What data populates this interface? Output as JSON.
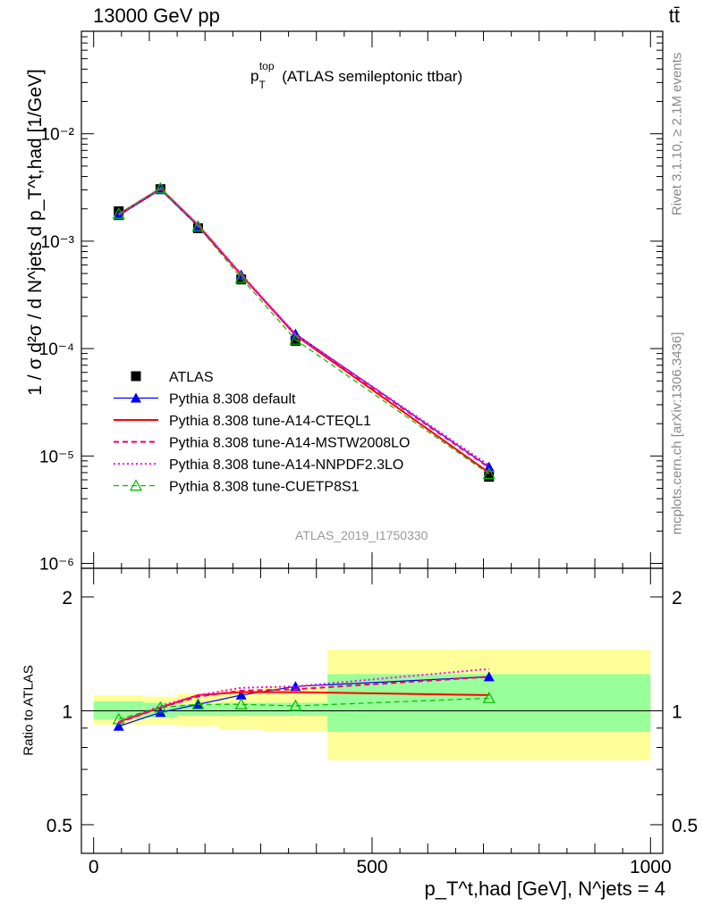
{
  "header": {
    "left": "13000 GeV pp",
    "right": "tt̄"
  },
  "side_text": {
    "rivet": "Rivet 3.1.10, ≥ 2.1M events",
    "mcplots": "mcplots.cern.ch [arXiv:1306.3436]"
  },
  "analysis_id": "ATLAS_2019_I1750330",
  "colors": {
    "data": "#000000",
    "default": "#0000ff",
    "cteql1": "#ff0000",
    "mstw": "#ee0066",
    "nnpdf": "#ff00ff",
    "cuetp8s1": "#00bb00",
    "band_inner": "#99ff99",
    "band_outer": "#ffff99"
  },
  "chart_data": [
    {
      "type": "line",
      "title": "p_T^top (ATLAS semileptonic ttbar)",
      "title_main": "p",
      "title_sub": "T",
      "title_sup": "top",
      "title_rest": "(ATLAS semileptonic ttbar)",
      "ylabel": "1 / σ d²σ / d N^jets d p_T^t,had [1/GeV]",
      "yscale": "log",
      "ylim": [
        9e-07,
        0.09
      ],
      "xlim": [
        -22,
        1022
      ],
      "y_ticks": [
        "10⁻⁶",
        "10⁻⁵",
        "10⁻⁴",
        "10⁻³",
        "10⁻²"
      ],
      "x": [
        45,
        120,
        187.5,
        265,
        362.5,
        710
      ],
      "series": [
        {
          "name": "ATLAS",
          "key": "data",
          "values": [
            0.0019,
            0.00305,
            0.00132,
            0.00044,
            0.000118,
            6.4e-06
          ]
        },
        {
          "name": "Pythia 8.308 default",
          "key": "default",
          "values": [
            0.00173,
            0.00302,
            0.00137,
            0.000485,
            0.000137,
            7.9e-06
          ]
        },
        {
          "name": "Pythia 8.308 tune-A14-CTEQL1",
          "key": "cteql1",
          "values": [
            0.00178,
            0.0031,
            0.00141,
            0.000485,
            0.000133,
            7e-06
          ]
        },
        {
          "name": "Pythia 8.308 tune-A14-MSTW2008LO",
          "key": "mstw",
          "values": [
            0.00176,
            0.00309,
            0.00141,
            0.000488,
            0.000134,
            7.8e-06
          ]
        },
        {
          "name": "Pythia 8.308 tune-A14-NNPDF2.3LO",
          "key": "nnpdf",
          "values": [
            0.00177,
            0.0031,
            0.00143,
            0.000495,
            0.000135,
            8.2e-06
          ]
        },
        {
          "name": "Pythia 8.308 tune-CUETP8S1",
          "key": "cuetp8s1",
          "values": [
            0.0018,
            0.0031,
            0.00137,
            0.000455,
            0.000121,
            6.8e-06
          ]
        }
      ]
    },
    {
      "type": "line",
      "ylabel": "Ratio to ATLAS",
      "yscale": "log",
      "ylim": [
        0.42,
        2.38
      ],
      "xlim": [
        -22,
        1022
      ],
      "y_ticks": [
        {
          "v": 0.5,
          "label": "0.5"
        },
        {
          "v": 1,
          "label": "1"
        },
        {
          "v": 2,
          "label": "2"
        }
      ],
      "x_ticks": [
        {
          "v": 0,
          "label": "0"
        },
        {
          "v": 500,
          "label": "500"
        },
        {
          "v": 1000,
          "label": "1000"
        }
      ],
      "xlabel": "p_T^t,had [GeV], N^jets = 4",
      "bins": [
        [
          0,
          90
        ],
        [
          90,
          150
        ],
        [
          150,
          225
        ],
        [
          225,
          305
        ],
        [
          305,
          420
        ],
        [
          420,
          1000
        ]
      ],
      "band_inner": [
        [
          0.95,
          1.06
        ],
        [
          0.96,
          1.05
        ],
        [
          0.97,
          1.04
        ],
        [
          0.97,
          1.05
        ],
        [
          0.97,
          1.05
        ],
        [
          0.88,
          1.25
        ]
      ],
      "band_outer": [
        [
          0.92,
          1.1
        ],
        [
          0.92,
          1.09
        ],
        [
          0.91,
          1.11
        ],
        [
          0.89,
          1.14
        ],
        [
          0.88,
          1.16
        ],
        [
          0.74,
          1.45
        ]
      ],
      "x": [
        45,
        120,
        187.5,
        265,
        362.5,
        710
      ],
      "series": [
        {
          "name": "Pythia 8.308 default",
          "key": "default",
          "values": [
            0.91,
            0.99,
            1.04,
            1.1,
            1.16,
            1.23
          ]
        },
        {
          "name": "Pythia 8.308 tune-A14-CTEQL1",
          "key": "cteql1",
          "values": [
            0.935,
            1.02,
            1.1,
            1.12,
            1.12,
            1.1
          ]
        },
        {
          "name": "Pythia 8.308 tune-A14-MSTW2008LO",
          "key": "mstw",
          "values": [
            0.93,
            1.02,
            1.09,
            1.13,
            1.14,
            1.23
          ]
        },
        {
          "name": "Pythia 8.308 tune-A14-NNPDF2.3LO",
          "key": "nnpdf",
          "values": [
            0.935,
            1.03,
            1.1,
            1.15,
            1.16,
            1.29
          ]
        },
        {
          "name": "Pythia 8.308 tune-CUETP8S1",
          "key": "cuetp8s1",
          "values": [
            0.95,
            1.02,
            1.04,
            1.04,
            1.03,
            1.08
          ]
        }
      ]
    }
  ]
}
